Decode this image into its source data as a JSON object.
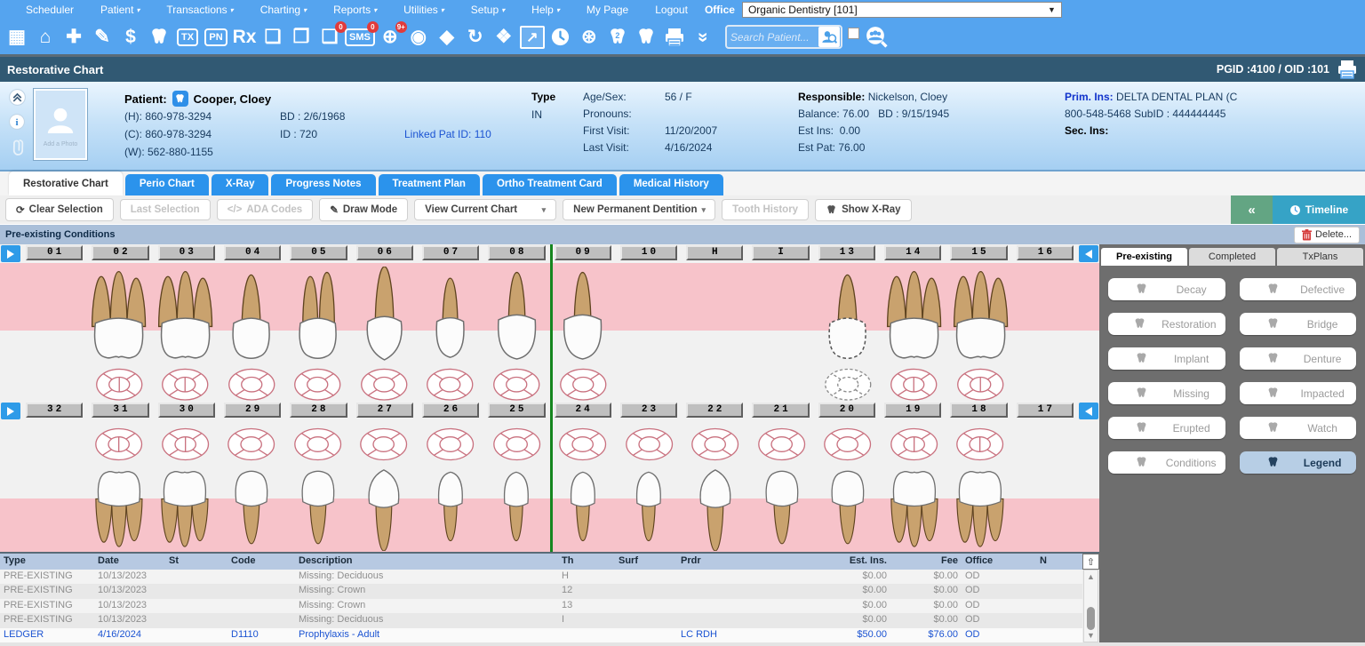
{
  "menubar": {
    "items": [
      {
        "label": "Scheduler",
        "arrow": false
      },
      {
        "label": "Patient",
        "arrow": true
      },
      {
        "label": "Transactions",
        "arrow": true
      },
      {
        "label": "Charting",
        "arrow": true
      },
      {
        "label": "Reports",
        "arrow": true
      },
      {
        "label": "Utilities",
        "arrow": true
      },
      {
        "label": "Setup",
        "arrow": true
      },
      {
        "label": "Help",
        "arrow": true
      },
      {
        "label": "My Page",
        "arrow": false
      },
      {
        "label": "Logout",
        "arrow": false
      }
    ],
    "office_label": "Office",
    "office_value": "Organic Dentistry [101]"
  },
  "icon_toolbar": {
    "icons": [
      {
        "name": "schedule-calendar-icon",
        "glyph": "▦"
      },
      {
        "name": "home-icon",
        "glyph": "⌂"
      },
      {
        "name": "add-patient-icon",
        "glyph": "✚"
      },
      {
        "name": "edit-notes-icon",
        "glyph": "✎"
      },
      {
        "name": "payments-icon",
        "glyph": "$"
      },
      {
        "name": "tooth-chart-icon",
        "shape": "tooth"
      },
      {
        "name": "tx-plan-calendar-icon",
        "glyph": "TX",
        "small": true
      },
      {
        "name": "progress-note-calendar-icon",
        "glyph": "PN",
        "small": true
      },
      {
        "name": "prescriptions-rx-icon",
        "glyph": "Rx"
      },
      {
        "name": "quick-note-icon",
        "glyph": "❏"
      },
      {
        "name": "document-star-icon",
        "glyph": "❒"
      },
      {
        "name": "messages-icon",
        "glyph": "❑",
        "badge": "0"
      },
      {
        "name": "sms-icon",
        "glyph": "SMS",
        "small": true,
        "badge": "0"
      },
      {
        "name": "patient-alerts-icon",
        "glyph": "⊕",
        "badge": "9+"
      },
      {
        "name": "community-icon",
        "glyph": "◉"
      },
      {
        "name": "shield-forward-icon",
        "glyph": "◆"
      },
      {
        "name": "sync-patient-icon",
        "glyph": "↻"
      },
      {
        "name": "connections-icon",
        "glyph": "❖"
      },
      {
        "name": "analytics-icon",
        "glyph": "↗",
        "boxed": true
      },
      {
        "name": "clock-icon",
        "shape": "clock"
      },
      {
        "name": "web-launch-icon",
        "glyph": "⊛"
      },
      {
        "name": "tooth-2-icon",
        "shape": "tooth",
        "overlay": "2"
      },
      {
        "name": "tooth-window-icon",
        "shape": "tooth"
      },
      {
        "name": "print-icon",
        "shape": "printer"
      },
      {
        "name": "expand-more-icon",
        "glyph": "»",
        "rotate": true
      }
    ],
    "search_placeholder": "Search Patient..."
  },
  "page_header": {
    "title": "Restorative Chart",
    "ids_text": "PGID :4100  /  OID :101"
  },
  "patient": {
    "photo_placeholder": "Add a Photo",
    "name_label": "Patient:",
    "name": "Cooper, Cloey",
    "phone_h": "(H): 860-978-3294",
    "phone_c": "(C): 860-978-3294",
    "phone_w": "(W): 562-880-1155",
    "bd": "BD : 2/6/1968",
    "id": "ID : 720",
    "linked": "Linked Pat ID: 110",
    "type_label": "Type",
    "type_value": "IN",
    "age_label": "Age/Sex:",
    "age_value": "56 / F",
    "pronouns_label": "Pronouns:",
    "pronouns_value": "",
    "first_visit_label": "First Visit:",
    "first_visit_value": "11/20/2007",
    "last_visit_label": "Last Visit:",
    "last_visit_value": "4/16/2024",
    "responsible_label": "Responsible:",
    "responsible_value": "Nickelson, Cloey",
    "balance_label": "Balance:",
    "balance_value": "76.00",
    "resp_bd": "BD : 9/15/1945",
    "est_ins_label": "Est Ins:",
    "est_ins_value": "0.00",
    "est_pat_label": "Est Pat:",
    "est_pat_value": "76.00",
    "prim_ins_label": "Prim. Ins:",
    "prim_ins_value": "DELTA DENTAL PLAN (C",
    "prim_ins_line2": "800-548-5468 SubID : 444444445",
    "sec_ins_label": "Sec. Ins:"
  },
  "tabs": [
    {
      "label": "Restorative Chart",
      "active": true
    },
    {
      "label": "Perio Chart",
      "active": false
    },
    {
      "label": "X-Ray",
      "active": false
    },
    {
      "label": "Progress Notes",
      "active": false
    },
    {
      "label": "Treatment Plan",
      "active": false
    },
    {
      "label": "Ortho Treatment Card",
      "active": false
    },
    {
      "label": "Medical History",
      "active": false
    }
  ],
  "chart_toolbar": {
    "clear": "Clear Selection",
    "last": "Last Selection",
    "ada": "ADA Codes",
    "draw": "Draw Mode",
    "view": "View Current Chart",
    "dentition": "New Permanent Dentition",
    "history": "Tooth History",
    "xray": "Show X-Ray",
    "collapse": "«",
    "timeline": "Timeline"
  },
  "conditions_bar": {
    "label": "Pre-existing Conditions",
    "delete": "Delete..."
  },
  "tooth_chart": {
    "upper": [
      {
        "label": "01"
      },
      {
        "label": "02",
        "type": "molar",
        "circle": "molar"
      },
      {
        "label": "03",
        "type": "molar",
        "circle": "molar"
      },
      {
        "label": "04",
        "type": "premolar",
        "circle": "plain"
      },
      {
        "label": "05",
        "type": "premolar2",
        "circle": "plain"
      },
      {
        "label": "06",
        "type": "canine",
        "circle": "plain"
      },
      {
        "label": "07",
        "type": "incisor",
        "circle": "plain"
      },
      {
        "label": "08",
        "type": "central",
        "circle": "plain"
      },
      {
        "label": "09",
        "type": "central",
        "circle": "plain"
      },
      {
        "label": "10"
      },
      {
        "label": "H"
      },
      {
        "label": "I"
      },
      {
        "label": "13",
        "type": "premolar",
        "dashed": true,
        "circle": "dashed"
      },
      {
        "label": "14",
        "type": "molar",
        "circle": "molar"
      },
      {
        "label": "15",
        "type": "molar",
        "circle": "molar"
      },
      {
        "label": "16"
      }
    ],
    "lower": [
      {
        "label": "32"
      },
      {
        "label": "31",
        "type": "molar",
        "circle": "molar"
      },
      {
        "label": "30",
        "type": "molar",
        "circle": "molar"
      },
      {
        "label": "29",
        "type": "premolar",
        "circle": "plain"
      },
      {
        "label": "28",
        "type": "premolar",
        "circle": "plain"
      },
      {
        "label": "27",
        "type": "canine",
        "circle": "plain"
      },
      {
        "label": "26",
        "type": "incisor",
        "circle": "plain"
      },
      {
        "label": "25",
        "type": "incisor",
        "circle": "plain"
      },
      {
        "label": "24",
        "type": "incisor",
        "circle": "plain"
      },
      {
        "label": "23",
        "type": "incisor",
        "circle": "plain"
      },
      {
        "label": "22",
        "type": "canine",
        "circle": "plain"
      },
      {
        "label": "21",
        "type": "premolar",
        "circle": "plain"
      },
      {
        "label": "20",
        "type": "premolar",
        "circle": "plain"
      },
      {
        "label": "19",
        "type": "molar",
        "circle": "molar"
      },
      {
        "label": "18",
        "type": "molar",
        "circle": "molar"
      },
      {
        "label": "17"
      }
    ]
  },
  "sidebar": {
    "tabs": [
      {
        "label": "Pre-existing",
        "active": true
      },
      {
        "label": "Completed",
        "active": false
      },
      {
        "label": "TxPlans",
        "active": false
      }
    ],
    "buttons": [
      {
        "label": "Decay"
      },
      {
        "label": "Defective"
      },
      {
        "label": "Restoration"
      },
      {
        "label": "Bridge"
      },
      {
        "label": "Implant"
      },
      {
        "label": "Denture"
      },
      {
        "label": "Missing"
      },
      {
        "label": "Impacted"
      },
      {
        "label": "Erupted"
      },
      {
        "label": "Watch"
      },
      {
        "label": "Conditions"
      },
      {
        "label": "Legend",
        "highlight": true
      }
    ]
  },
  "grid": {
    "columns": [
      "Type",
      "Date",
      "St",
      "Code",
      "Description",
      "Th",
      "Surf",
      "Prdr",
      "Est. Ins.",
      "Fee",
      "Office",
      "N"
    ],
    "rows": [
      {
        "style": "muted",
        "cells": [
          "PRE-EXISTING",
          "10/13/2023",
          "",
          "",
          "Missing: Deciduous",
          "H",
          "",
          "",
          "$0.00",
          "$0.00",
          "OD",
          ""
        ]
      },
      {
        "style": "muted",
        "cells": [
          "PRE-EXISTING",
          "10/13/2023",
          "",
          "",
          "Missing: Crown",
          "12",
          "",
          "",
          "$0.00",
          "$0.00",
          "OD",
          ""
        ]
      },
      {
        "style": "muted",
        "cells": [
          "PRE-EXISTING",
          "10/13/2023",
          "",
          "",
          "Missing: Crown",
          "13",
          "",
          "",
          "$0.00",
          "$0.00",
          "OD",
          ""
        ]
      },
      {
        "style": "muted",
        "cells": [
          "PRE-EXISTING",
          "10/13/2023",
          "",
          "",
          "Missing: Deciduous",
          "I",
          "",
          "",
          "$0.00",
          "$0.00",
          "OD",
          ""
        ]
      },
      {
        "style": "ledger",
        "cells": [
          "LEDGER",
          "4/16/2024",
          "",
          "D1110",
          "Prophylaxis - Adult",
          "",
          "",
          "LC RDH",
          "$50.00",
          "$76.00",
          "OD",
          ""
        ]
      }
    ]
  },
  "colors": {
    "accent_blue": "#55A4EF",
    "header_navy": "#315973",
    "tab_blue": "#2B93EC",
    "gum_pink": "#F7C3CA",
    "link_blue": "#1B53D2",
    "collapse_green": "#63A583",
    "timeline_teal": "#36A3C6",
    "center_line_green": "#15861F"
  }
}
